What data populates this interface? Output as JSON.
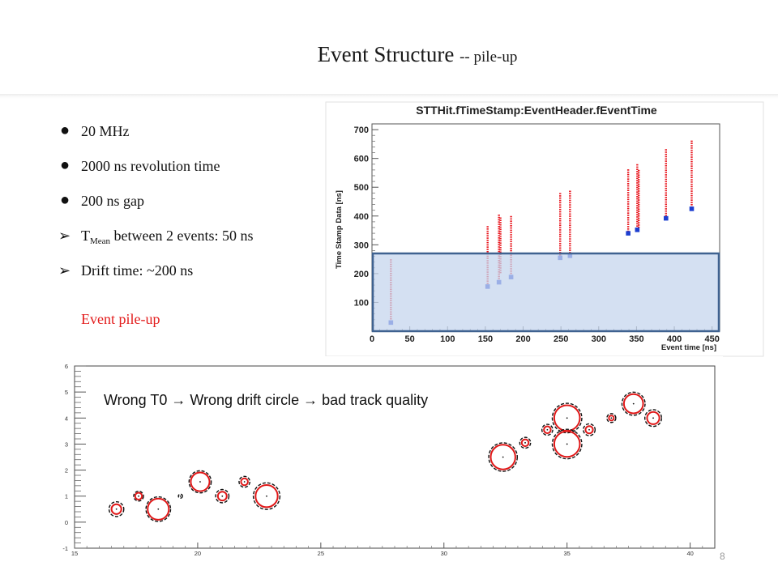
{
  "slide": {
    "title_main": "Event Structure ",
    "title_sub": "-- pile-up",
    "page_number": "8",
    "pileup_label": "Event pile-up",
    "bullets": [
      {
        "marker": "●",
        "style": "dot",
        "text": "20 MHz"
      },
      {
        "marker": "●",
        "style": "dot",
        "text": "2000 ns revolution time"
      },
      {
        "marker": "●",
        "style": "dot",
        "text": "200 ns gap"
      },
      {
        "marker": "➢",
        "style": "arrow",
        "pre": "T",
        "sub": "Mean",
        "post": " between 2 events: 50 ns"
      },
      {
        "marker": "➢",
        "style": "arrow",
        "text": "Drift time: ~200 ns"
      }
    ],
    "highlight_color": "#c5d6ee",
    "highlight_border": "#3f6290"
  },
  "chart_data": [
    {
      "type": "scatter",
      "title": "STTHit.fTimeStamp:EventHeader.fEventTime",
      "xlabel": "Event time [ns]",
      "ylabel": "Time Stamp Data [ns]",
      "xlim": [
        0,
        460
      ],
      "ylim": [
        0,
        720
      ],
      "xticks": [
        0,
        50,
        100,
        150,
        200,
        250,
        300,
        350,
        400,
        450
      ],
      "yticks": [
        100,
        200,
        300,
        400,
        500,
        600,
        700
      ],
      "grid": false,
      "highlight_band": {
        "y_from": 0,
        "y_to": 270
      },
      "series": [
        {
          "color": "#e8141c",
          "marker": "vertical-point-strip",
          "strips": [
            {
              "x": 25,
              "y_from": 30,
              "y_to": 250
            },
            {
              "x": 153,
              "y_from": 155,
              "y_to": 365
            },
            {
              "x": 168,
              "y_from": 170,
              "y_to": 405
            },
            {
              "x": 170,
              "y_from": 200,
              "y_to": 395
            },
            {
              "x": 184,
              "y_from": 190,
              "y_to": 400
            },
            {
              "x": 249,
              "y_from": 255,
              "y_to": 480
            },
            {
              "x": 262,
              "y_from": 262,
              "y_to": 488
            },
            {
              "x": 339,
              "y_from": 340,
              "y_to": 562
            },
            {
              "x": 351,
              "y_from": 350,
              "y_to": 580
            },
            {
              "x": 353,
              "y_from": 360,
              "y_to": 560
            },
            {
              "x": 389,
              "y_from": 392,
              "y_to": 632
            },
            {
              "x": 423,
              "y_from": 425,
              "y_to": 662
            }
          ]
        },
        {
          "color": "#1d3fd0",
          "marker": "square",
          "points": [
            {
              "x": 25,
              "y": 30
            },
            {
              "x": 153,
              "y": 155
            },
            {
              "x": 168,
              "y": 170
            },
            {
              "x": 184,
              "y": 188
            },
            {
              "x": 249,
              "y": 255
            },
            {
              "x": 262,
              "y": 262
            },
            {
              "x": 339,
              "y": 340
            },
            {
              "x": 351,
              "y": 352
            },
            {
              "x": 389,
              "y": 392
            },
            {
              "x": 423,
              "y": 425
            }
          ]
        }
      ]
    },
    {
      "type": "scatter",
      "annotation": "Wrong T0 → Wrong drift circle → bad track quality",
      "xlim": [
        15,
        41
      ],
      "ylim": [
        -1,
        6
      ],
      "xticks": [
        15,
        20,
        25,
        30,
        35,
        40
      ],
      "yticks": [
        -1,
        0,
        1,
        2,
        3,
        4,
        5,
        6
      ],
      "grid": false,
      "series": [
        {
          "marker": "drift-circle",
          "description_colors": {
            "true_circle": "#111111",
            "wrong_circle": "#e01818"
          },
          "circles": [
            {
              "x": 16.7,
              "y": 0.5,
              "r_true": 0.3,
              "r_wrong": 0.2
            },
            {
              "x": 17.6,
              "y": 1.0,
              "r_true": 0.2,
              "r_wrong": 0.14
            },
            {
              "x": 18.4,
              "y": 0.5,
              "r_true": 0.5,
              "r_wrong": 0.43
            },
            {
              "x": 19.3,
              "y": 1.0,
              "r_true": 0.06,
              "r_wrong": 0.0
            },
            {
              "x": 20.1,
              "y": 1.55,
              "r_true": 0.45,
              "r_wrong": 0.38
            },
            {
              "x": 21.0,
              "y": 1.0,
              "r_true": 0.27,
              "r_wrong": 0.18
            },
            {
              "x": 21.9,
              "y": 1.55,
              "r_true": 0.22,
              "r_wrong": 0.14
            },
            {
              "x": 22.8,
              "y": 1.0,
              "r_true": 0.54,
              "r_wrong": 0.45
            },
            {
              "x": 32.4,
              "y": 2.5,
              "r_true": 0.58,
              "r_wrong": 0.5
            },
            {
              "x": 33.3,
              "y": 3.05,
              "r_true": 0.22,
              "r_wrong": 0.14
            },
            {
              "x": 34.2,
              "y": 3.55,
              "r_true": 0.22,
              "r_wrong": 0.14
            },
            {
              "x": 35.0,
              "y": 4.0,
              "r_true": 0.6,
              "r_wrong": 0.52
            },
            {
              "x": 35.0,
              "y": 3.0,
              "r_true": 0.6,
              "r_wrong": 0.52
            },
            {
              "x": 35.9,
              "y": 3.55,
              "r_true": 0.24,
              "r_wrong": 0.15
            },
            {
              "x": 36.8,
              "y": 4.0,
              "r_true": 0.18,
              "r_wrong": 0.1
            },
            {
              "x": 37.7,
              "y": 4.55,
              "r_true": 0.47,
              "r_wrong": 0.39
            },
            {
              "x": 38.5,
              "y": 4.0,
              "r_true": 0.34,
              "r_wrong": 0.25
            }
          ]
        }
      ]
    }
  ]
}
